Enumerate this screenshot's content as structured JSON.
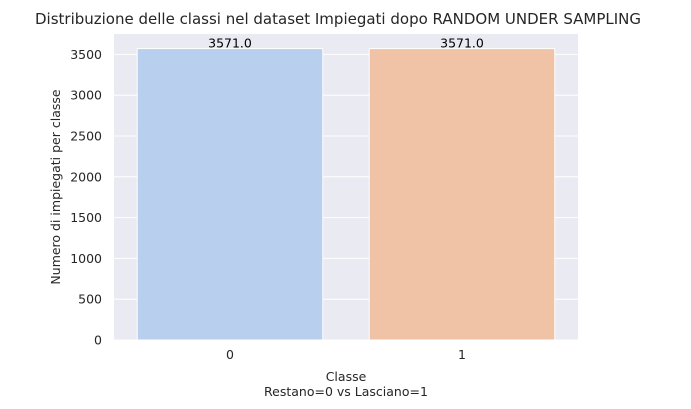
{
  "chart_data": {
    "type": "bar",
    "title": "Distribuzione delle classi nel dataset Impiegati dopo RANDOM UNDER SAMPLING",
    "xlabel_lines": [
      "Classe",
      "Restano=0  vs  Lasciano=1"
    ],
    "ylabel": "Numero di impiegati per classe",
    "categories": [
      "0",
      "1"
    ],
    "values": [
      3571.0,
      3571.0
    ],
    "data_labels": [
      "3571.0",
      "3571.0"
    ],
    "ylim": [
      0,
      3750
    ],
    "yticks": [
      0,
      500,
      1000,
      1500,
      2000,
      2500,
      3000,
      3500
    ],
    "grid": true,
    "colors": [
      "#b8cfee",
      "#f0c3a6"
    ],
    "background": "#eaeaf2"
  }
}
